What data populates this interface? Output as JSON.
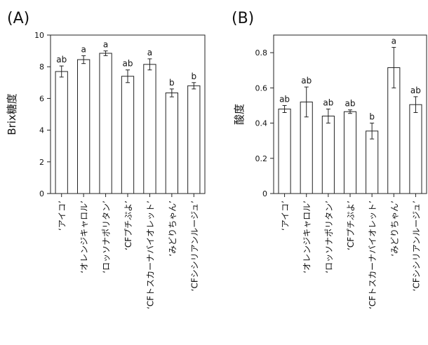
{
  "chart_data": [
    {
      "type": "bar",
      "panel_label": "(A)",
      "ylabel": "Brix糖度",
      "ylim": [
        0,
        10
      ],
      "yticks": [
        "0",
        "2",
        "4",
        "6",
        "8",
        "10"
      ],
      "ytick_values": [
        0,
        2,
        4,
        6,
        8,
        10
      ],
      "categories": [
        "‘アイコ’",
        "‘オレンジキャロル’",
        "‘ロッソナポリタン’",
        "‘CFプチぷよ’",
        "‘CFトスカーナバイオレット’",
        "‘みどりちゃん’",
        "‘CFシシリアンルージュ’"
      ],
      "values": [
        7.7,
        8.45,
        8.85,
        7.4,
        8.15,
        6.35,
        6.8
      ],
      "errors": [
        0.35,
        0.25,
        0.15,
        0.4,
        0.35,
        0.25,
        0.2
      ],
      "letters": [
        "ab",
        "a",
        "a",
        "ab",
        "a",
        "b",
        "b"
      ],
      "grid": false
    },
    {
      "type": "bar",
      "panel_label": "(B)",
      "ylabel": "酸度",
      "ylim": [
        0,
        0.9
      ],
      "yticks": [
        "0",
        "0.2",
        "0.4",
        "0.6",
        "0.8"
      ],
      "ytick_values": [
        0,
        0.2,
        0.4,
        0.6,
        0.8
      ],
      "categories": [
        "‘アイコ’",
        "‘オレンジキャロル’",
        "‘ロッソナポリタン’",
        "‘CFプチぷよ’",
        "‘CFトスカーナバイオレット’",
        "‘みどりちゃん’",
        "‘CFシシリアンルージュ’"
      ],
      "values": [
        0.48,
        0.52,
        0.44,
        0.465,
        0.355,
        0.715,
        0.505
      ],
      "errors": [
        0.02,
        0.085,
        0.04,
        0.01,
        0.045,
        0.115,
        0.045
      ],
      "letters": [
        "ab",
        "ab",
        "ab",
        "ab",
        "b",
        "a",
        "ab"
      ],
      "grid": false
    }
  ]
}
